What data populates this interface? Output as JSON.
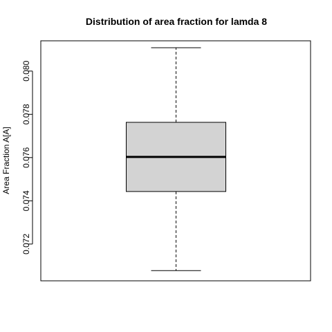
{
  "chart_data": {
    "type": "box",
    "title": "Distribution of area fraction for lamda 8",
    "xlabel": "",
    "ylabel": "Area Fraction A[A]",
    "ylim": [
      0.0703,
      0.0814
    ],
    "yticks": [
      0.072,
      0.074,
      0.076,
      0.078,
      0.08
    ],
    "ytick_labels": [
      "0.072",
      "0.074",
      "0.076",
      "0.078",
      "0.080"
    ],
    "box": {
      "min": 0.07077,
      "q1": 0.07443,
      "median": 0.07603,
      "q3": 0.07763,
      "max": 0.08108
    },
    "box_fill": "#d3d3d3",
    "grid": false
  }
}
